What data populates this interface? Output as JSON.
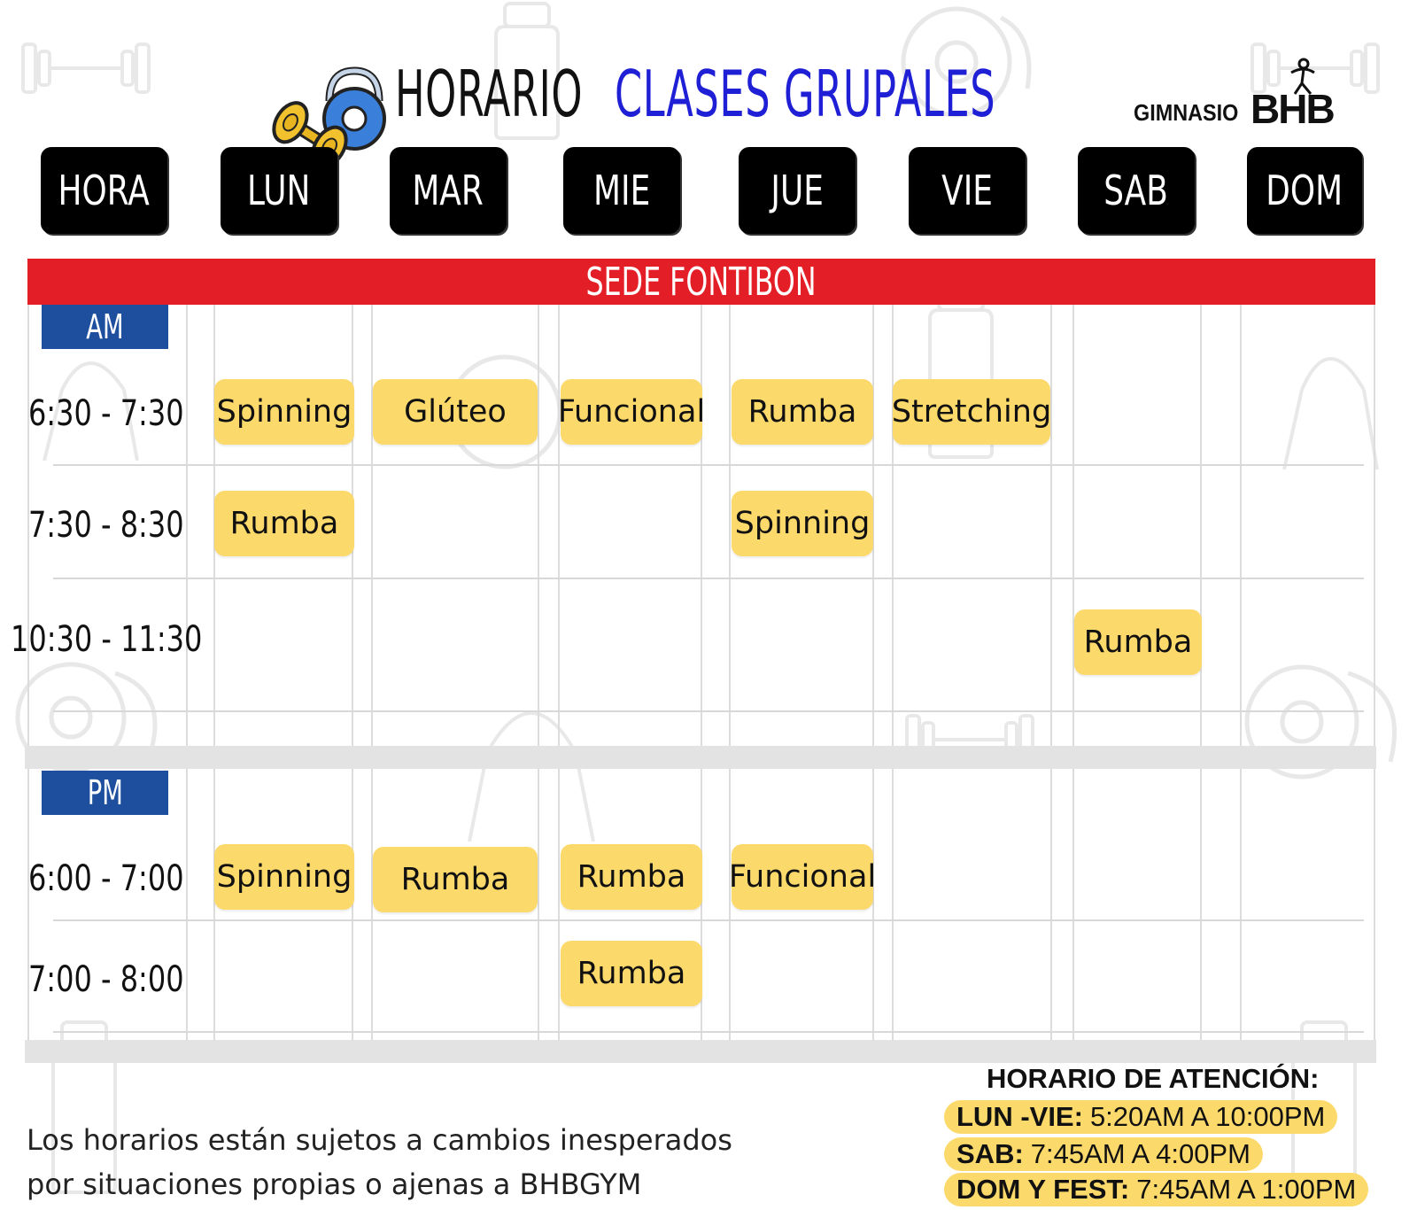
{
  "header": {
    "title_part1": "HORARIO",
    "title_part2": "CLASES GRUPALES",
    "title_colors": {
      "part1": "#111111",
      "part2": "#1f1fd6"
    },
    "brand_prefix": "GIMNASIO",
    "brand_name": "BHB"
  },
  "days": [
    "HORA",
    "LUN",
    "MAR",
    "MIE",
    "JUE",
    "VIE",
    "SAB",
    "DOM"
  ],
  "location": {
    "label": "SEDE FONTIBON",
    "color": "#e41e26"
  },
  "am": {
    "label": "AM",
    "rows": [
      {
        "time": "6:30 - 7:30",
        "classes": [
          "Spinning",
          "Glúteo",
          "Funcional",
          "Rumba",
          "Stretching",
          "",
          ""
        ]
      },
      {
        "time": "7:30 - 8:30",
        "classes": [
          "Rumba",
          "",
          "",
          "Spinning",
          "",
          "",
          ""
        ]
      },
      {
        "time": "10:30 - 11:30",
        "classes": [
          "",
          "",
          "",
          "",
          "",
          "Rumba",
          ""
        ]
      }
    ]
  },
  "pm": {
    "label": "PM",
    "rows": [
      {
        "time": "6:00 - 7:00",
        "classes": [
          "Spinning",
          "Rumba",
          "Rumba",
          "Funcional",
          "",
          "",
          ""
        ]
      },
      {
        "time": "7:00 - 8:00",
        "classes": [
          "",
          "",
          "Rumba",
          "",
          "",
          "",
          ""
        ]
      }
    ]
  },
  "colors": {
    "pill": "#fcd96b",
    "period": "#1e4f9e",
    "day_header": "#000000"
  },
  "footer": {
    "disclaimer_line1": "Los horarios están sujetos a cambios inesperados",
    "disclaimer_line2": "por situaciones propias o ajenas a BHBGYM",
    "hours_title": "HORARIO DE ATENCIÓN:",
    "hours": [
      {
        "label": "LUN -VIE:",
        "value": "5:20AM A 10:00PM"
      },
      {
        "label": "SAB:",
        "value": "7:45AM A 4:00PM"
      },
      {
        "label": "DOM Y FEST:",
        "value": "7:45AM A 1:00PM"
      }
    ]
  },
  "icons": [
    "kettlebell-dumbbell-icon",
    "dumbbell-watermark-icon",
    "bottle-watermark-icon",
    "weight-plate-watermark-icon",
    "jump-rope-watermark-icon",
    "brand-logo-figure-icon"
  ]
}
